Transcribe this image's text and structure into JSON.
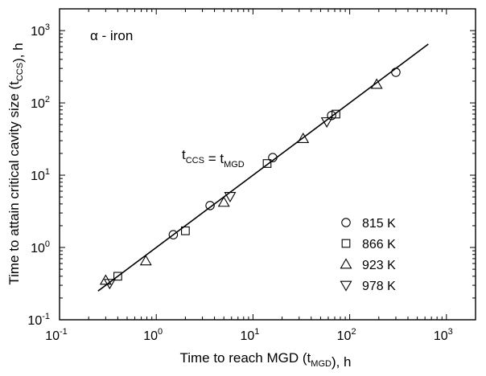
{
  "chart_data": {
    "type": "scatter",
    "x_scale": "log",
    "y_scale": "log",
    "xlim": [
      0.1,
      2000
    ],
    "ylim": [
      0.1,
      2000
    ],
    "xlabel": "Time to reach MGD (t_MGD), h",
    "ylabel": "Time to attain critical cavity size (t_CCS), h",
    "annotation_material": "α - iron",
    "annotation_equation": "t_CCS = t_MGD",
    "legend_position": "right",
    "x_ticks": [
      {
        "value": 0.1,
        "base": "10",
        "exp": "-1"
      },
      {
        "value": 1,
        "base": "10",
        "exp": "0"
      },
      {
        "value": 10,
        "base": "10",
        "exp": "1"
      },
      {
        "value": 100,
        "base": "10",
        "exp": "2"
      },
      {
        "value": 1000,
        "base": "10",
        "exp": "3"
      }
    ],
    "y_ticks": [
      {
        "value": 0.1,
        "base": "10",
        "exp": "-1"
      },
      {
        "value": 1,
        "base": "10",
        "exp": "0"
      },
      {
        "value": 10,
        "base": "10",
        "exp": "1"
      },
      {
        "value": 100,
        "base": "10",
        "exp": "2"
      },
      {
        "value": 1000,
        "base": "10",
        "exp": "3"
      }
    ],
    "fit_line": {
      "x": [
        0.25,
        650
      ],
      "y": [
        0.25,
        650
      ]
    },
    "series": [
      {
        "name": "815 K",
        "marker": "circle",
        "x": [
          1.5,
          3.6,
          16,
          65,
          300
        ],
        "y": [
          1.5,
          3.8,
          17.5,
          67,
          265
        ]
      },
      {
        "name": "866 K",
        "marker": "square",
        "x": [
          0.4,
          2.0,
          14,
          72
        ],
        "y": [
          0.4,
          1.7,
          14.5,
          70
        ]
      },
      {
        "name": "923 K",
        "marker": "triangle-up",
        "x": [
          0.3,
          0.78,
          5.0,
          33,
          190
        ],
        "y": [
          0.35,
          0.65,
          4.2,
          32,
          180
        ]
      },
      {
        "name": "978 K",
        "marker": "triangle-down",
        "x": [
          0.33,
          5.8,
          58
        ],
        "y": [
          0.32,
          5.1,
          55
        ]
      }
    ]
  }
}
